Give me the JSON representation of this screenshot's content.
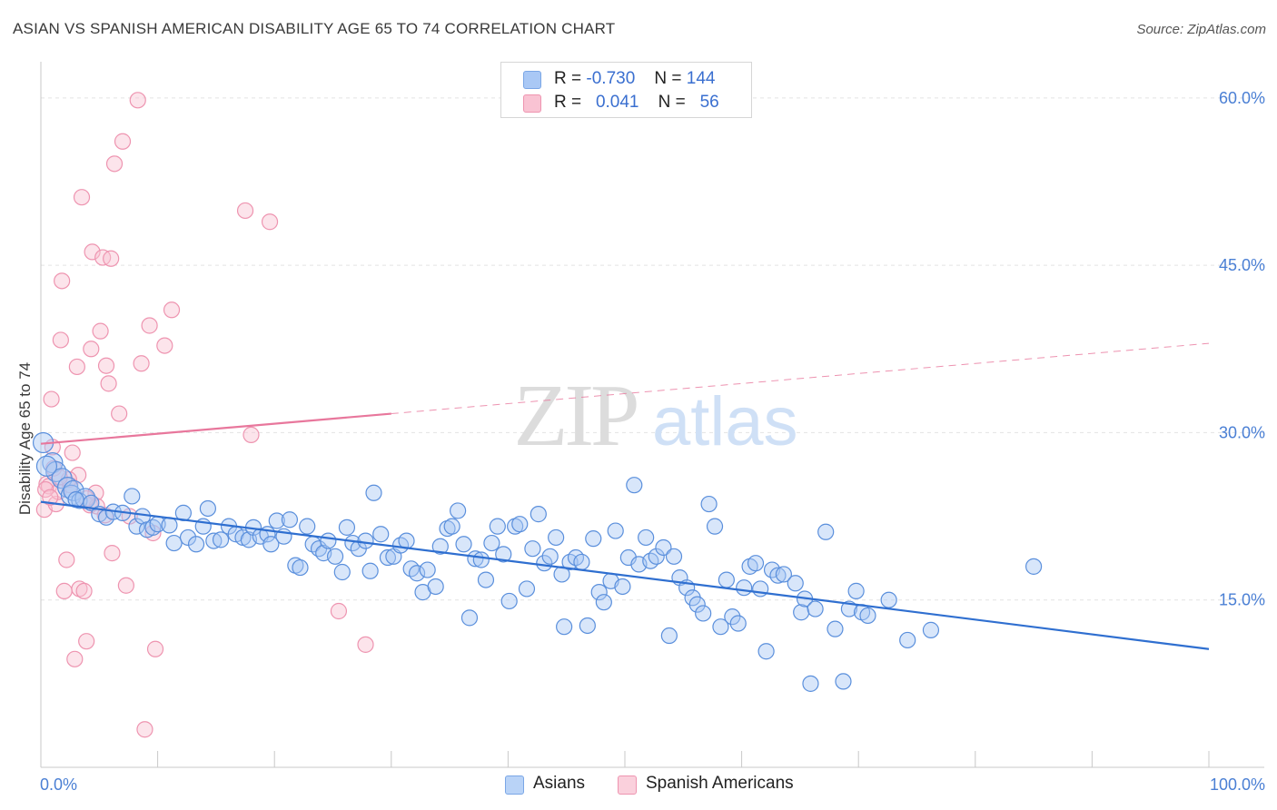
{
  "header": {
    "title": "ASIAN VS SPANISH AMERICAN DISABILITY AGE 65 TO 74 CORRELATION CHART",
    "source": "Source: ZipAtlas.com"
  },
  "legend": {
    "rows": [
      {
        "r_label": "R =",
        "r_value": "-0.730",
        "n_label": "N =",
        "n_value": "144",
        "color": "#a9c8f5",
        "border": "#7aa6e6"
      },
      {
        "r_label": "R =",
        "r_value": "0.041",
        "n_label": "N =",
        "n_value": "56",
        "color": "#f9c3d3",
        "border": "#ee94b0"
      }
    ]
  },
  "bottom_legend": [
    {
      "label": "Asians",
      "color": "#b9d3f7",
      "border": "#7aa6e6"
    },
    {
      "label": "Spanish Americans",
      "color": "#fad0dc",
      "border": "#ee94b0"
    }
  ],
  "watermark": {
    "zip": "ZIP",
    "atlas": "atlas"
  },
  "chart_data": {
    "type": "scatter",
    "title": "ASIAN VS SPANISH AMERICAN DISABILITY AGE 65 TO 74 CORRELATION CHART",
    "ylabel": "Disability Age 65 to 74",
    "xlabel": "",
    "xlim": [
      0,
      100
    ],
    "ylim": [
      0,
      63
    ],
    "x_tick_labels": [
      "0.0%",
      "100.0%"
    ],
    "y_ticks": [
      15,
      30,
      45,
      60
    ],
    "y_tick_labels": [
      "15.0%",
      "30.0%",
      "45.0%",
      "60.0%"
    ],
    "grid": "horizontal dashed",
    "legend_position": "top-center",
    "colors": {
      "asians": "#4a86d8",
      "spanish": "#ee85a8",
      "asians_line": "#2f6fd0",
      "spanish_line": "#e8779c"
    },
    "series": [
      {
        "name": "Asians",
        "trend": {
          "x0": 0,
          "y0": 23.8,
          "x1": 100,
          "y1": 10.6
        },
        "points": [
          [
            0.2,
            29.1
          ],
          [
            1.0,
            27.3
          ],
          [
            1.3,
            26.5
          ],
          [
            1.8,
            25.9
          ],
          [
            2.3,
            25.1
          ],
          [
            2.6,
            24.4
          ],
          [
            2.8,
            24.8
          ],
          [
            3.3,
            23.9
          ],
          [
            3.8,
            24.1
          ],
          [
            4.3,
            23.7
          ],
          [
            5.0,
            22.7
          ],
          [
            5.6,
            22.4
          ],
          [
            6.2,
            22.9
          ],
          [
            7.0,
            22.8
          ],
          [
            7.8,
            24.3
          ],
          [
            8.2,
            21.6
          ],
          [
            8.7,
            22.5
          ],
          [
            9.1,
            21.3
          ],
          [
            9.6,
            21.5
          ],
          [
            10.0,
            21.8
          ],
          [
            11.0,
            21.7
          ],
          [
            11.4,
            20.1
          ],
          [
            12.2,
            22.8
          ],
          [
            12.6,
            20.6
          ],
          [
            13.3,
            20.0
          ],
          [
            13.9,
            21.6
          ],
          [
            14.3,
            23.2
          ],
          [
            14.8,
            20.3
          ],
          [
            15.4,
            20.4
          ],
          [
            16.1,
            21.6
          ],
          [
            16.7,
            20.9
          ],
          [
            17.3,
            20.6
          ],
          [
            17.8,
            20.4
          ],
          [
            18.2,
            21.5
          ],
          [
            18.8,
            20.7
          ],
          [
            19.4,
            20.9
          ],
          [
            19.7,
            20.0
          ],
          [
            20.2,
            22.1
          ],
          [
            20.8,
            20.7
          ],
          [
            21.3,
            22.2
          ],
          [
            21.8,
            18.1
          ],
          [
            22.2,
            17.9
          ],
          [
            22.8,
            21.6
          ],
          [
            23.3,
            20.0
          ],
          [
            23.8,
            19.6
          ],
          [
            24.2,
            19.2
          ],
          [
            24.6,
            20.3
          ],
          [
            25.2,
            18.9
          ],
          [
            25.8,
            17.5
          ],
          [
            26.2,
            21.5
          ],
          [
            26.7,
            20.1
          ],
          [
            27.2,
            19.6
          ],
          [
            27.8,
            20.3
          ],
          [
            28.2,
            17.6
          ],
          [
            28.5,
            24.6
          ],
          [
            29.1,
            20.9
          ],
          [
            29.7,
            18.8
          ],
          [
            30.2,
            18.9
          ],
          [
            30.8,
            19.9
          ],
          [
            31.3,
            20.3
          ],
          [
            31.7,
            17.8
          ],
          [
            32.2,
            17.4
          ],
          [
            32.7,
            15.7
          ],
          [
            33.1,
            17.7
          ],
          [
            33.8,
            16.2
          ],
          [
            34.2,
            19.8
          ],
          [
            34.8,
            21.4
          ],
          [
            35.2,
            21.6
          ],
          [
            35.7,
            23.0
          ],
          [
            36.2,
            20.0
          ],
          [
            36.7,
            13.4
          ],
          [
            37.2,
            18.7
          ],
          [
            37.7,
            18.6
          ],
          [
            38.1,
            16.8
          ],
          [
            38.6,
            20.1
          ],
          [
            39.1,
            21.6
          ],
          [
            39.6,
            19.1
          ],
          [
            40.1,
            14.9
          ],
          [
            40.6,
            21.6
          ],
          [
            41.0,
            21.8
          ],
          [
            41.6,
            16.0
          ],
          [
            42.1,
            19.6
          ],
          [
            42.6,
            22.7
          ],
          [
            43.1,
            18.3
          ],
          [
            43.6,
            18.9
          ],
          [
            44.1,
            20.6
          ],
          [
            44.6,
            17.3
          ],
          [
            44.8,
            12.6
          ],
          [
            45.3,
            18.4
          ],
          [
            45.8,
            18.8
          ],
          [
            46.3,
            18.4
          ],
          [
            46.8,
            12.7
          ],
          [
            47.3,
            20.5
          ],
          [
            47.8,
            15.7
          ],
          [
            48.2,
            14.8
          ],
          [
            48.8,
            16.7
          ],
          [
            49.2,
            21.2
          ],
          [
            49.8,
            16.2
          ],
          [
            50.3,
            18.8
          ],
          [
            50.8,
            25.3
          ],
          [
            51.2,
            18.2
          ],
          [
            51.8,
            20.6
          ],
          [
            52.2,
            18.5
          ],
          [
            52.7,
            18.9
          ],
          [
            53.3,
            19.7
          ],
          [
            53.8,
            11.8
          ],
          [
            54.2,
            18.9
          ],
          [
            54.7,
            17.0
          ],
          [
            55.3,
            16.1
          ],
          [
            55.8,
            15.2
          ],
          [
            56.2,
            14.6
          ],
          [
            56.7,
            13.8
          ],
          [
            57.2,
            23.6
          ],
          [
            57.7,
            21.6
          ],
          [
            58.2,
            12.6
          ],
          [
            58.7,
            16.8
          ],
          [
            59.2,
            13.5
          ],
          [
            59.7,
            12.9
          ],
          [
            60.2,
            16.1
          ],
          [
            60.7,
            18.0
          ],
          [
            61.2,
            18.3
          ],
          [
            61.6,
            16.0
          ],
          [
            62.1,
            10.4
          ],
          [
            62.6,
            17.7
          ],
          [
            63.1,
            17.2
          ],
          [
            63.6,
            17.3
          ],
          [
            64.6,
            16.5
          ],
          [
            65.1,
            13.9
          ],
          [
            65.4,
            15.1
          ],
          [
            65.9,
            7.5
          ],
          [
            66.3,
            14.2
          ],
          [
            67.2,
            21.1
          ],
          [
            68.0,
            12.4
          ],
          [
            68.7,
            7.7
          ],
          [
            69.2,
            14.2
          ],
          [
            69.8,
            15.8
          ],
          [
            70.3,
            13.9
          ],
          [
            70.8,
            13.6
          ],
          [
            72.6,
            15.0
          ],
          [
            74.2,
            11.4
          ],
          [
            76.2,
            12.3
          ],
          [
            85.0,
            18.0
          ],
          [
            0.5,
            27.0
          ],
          [
            3.0,
            24.0
          ]
        ]
      },
      {
        "name": "Spanish Americans",
        "trend": {
          "x0": 0,
          "y0": 29.0,
          "x1": 100,
          "y1": 38.0,
          "solid_until_x": 30
        },
        "points": [
          [
            0.3,
            23.1
          ],
          [
            0.5,
            25.4
          ],
          [
            0.7,
            25.2
          ],
          [
            0.9,
            33.0
          ],
          [
            1.1,
            26.8
          ],
          [
            1.3,
            23.6
          ],
          [
            1.5,
            24.7
          ],
          [
            1.7,
            38.3
          ],
          [
            1.8,
            43.6
          ],
          [
            2.0,
            15.8
          ],
          [
            2.2,
            18.6
          ],
          [
            2.5,
            25.3
          ],
          [
            2.7,
            28.2
          ],
          [
            2.9,
            9.7
          ],
          [
            3.1,
            35.9
          ],
          [
            3.2,
            26.2
          ],
          [
            3.3,
            16.0
          ],
          [
            3.5,
            51.1
          ],
          [
            3.7,
            15.8
          ],
          [
            3.9,
            11.3
          ],
          [
            4.2,
            23.5
          ],
          [
            4.3,
            37.5
          ],
          [
            4.4,
            46.2
          ],
          [
            4.7,
            24.6
          ],
          [
            4.8,
            23.4
          ],
          [
            5.1,
            39.1
          ],
          [
            5.3,
            45.7
          ],
          [
            5.5,
            22.6
          ],
          [
            5.6,
            36.0
          ],
          [
            5.8,
            34.4
          ],
          [
            6.0,
            45.6
          ],
          [
            6.1,
            19.2
          ],
          [
            6.3,
            54.1
          ],
          [
            6.7,
            31.7
          ],
          [
            7.0,
            56.1
          ],
          [
            7.3,
            16.3
          ],
          [
            7.6,
            22.5
          ],
          [
            8.3,
            59.8
          ],
          [
            8.6,
            36.2
          ],
          [
            8.9,
            3.4
          ],
          [
            9.3,
            39.6
          ],
          [
            9.6,
            21.0
          ],
          [
            9.8,
            10.6
          ],
          [
            10.6,
            37.8
          ],
          [
            11.2,
            41.0
          ],
          [
            17.5,
            49.9
          ],
          [
            18.0,
            29.8
          ],
          [
            19.6,
            48.9
          ],
          [
            25.5,
            14.0
          ],
          [
            27.8,
            11.0
          ],
          [
            0.4,
            24.9
          ],
          [
            1.0,
            28.7
          ],
          [
            2.4,
            25.8
          ],
          [
            3.9,
            24.1
          ],
          [
            1.6,
            26.0
          ],
          [
            0.8,
            24.2
          ]
        ]
      }
    ]
  }
}
